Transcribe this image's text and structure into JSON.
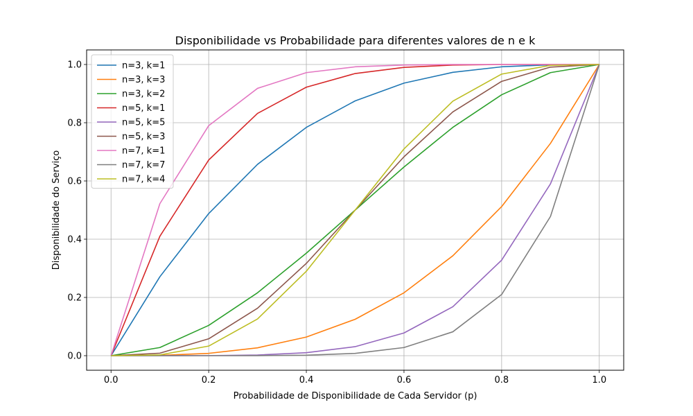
{
  "chart_data": {
    "type": "line",
    "title": "Disponibilidade vs Probabilidade para diferentes valores de n e k",
    "xlabel": "Probabilidade de Disponibilidade de Cada Servidor (p)",
    "ylabel": "Disponibilidade do Serviço",
    "xlim": [
      -0.05,
      1.05
    ],
    "ylim": [
      -0.05,
      1.05
    ],
    "xticks": [
      0.0,
      0.2,
      0.4,
      0.6,
      0.8,
      1.0
    ],
    "xtick_labels": [
      "0.0",
      "0.2",
      "0.4",
      "0.6",
      "0.8",
      "1.0"
    ],
    "yticks": [
      0.0,
      0.2,
      0.4,
      0.6,
      0.8,
      1.0
    ],
    "ytick_labels": [
      "0.0",
      "0.2",
      "0.4",
      "0.6",
      "0.8",
      "1.0"
    ],
    "grid": true,
    "legend_position": "top-left",
    "x": [
      0.0,
      0.1,
      0.2,
      0.3,
      0.4,
      0.5,
      0.6,
      0.7,
      0.8,
      0.9,
      1.0
    ],
    "series": [
      {
        "name": "n=3, k=1",
        "color": "#1f77b4",
        "values": [
          0.0,
          0.271,
          0.488,
          0.657,
          0.784,
          0.875,
          0.936,
          0.973,
          0.992,
          0.999,
          1.0
        ]
      },
      {
        "name": "n=3, k=3",
        "color": "#ff7f0e",
        "values": [
          0.0,
          0.001,
          0.008,
          0.027,
          0.064,
          0.125,
          0.216,
          0.343,
          0.512,
          0.729,
          1.0
        ]
      },
      {
        "name": "n=3, k=2",
        "color": "#2ca02c",
        "values": [
          0.0,
          0.028,
          0.104,
          0.216,
          0.352,
          0.5,
          0.648,
          0.784,
          0.896,
          0.972,
          1.0
        ]
      },
      {
        "name": "n=5, k=1",
        "color": "#d62728",
        "values": [
          0.0,
          0.41,
          0.672,
          0.832,
          0.922,
          0.969,
          0.99,
          0.998,
          1.0,
          1.0,
          1.0
        ]
      },
      {
        "name": "n=5, k=5",
        "color": "#9467bd",
        "values": [
          0.0,
          0.0,
          0.0003,
          0.0024,
          0.0102,
          0.031,
          0.078,
          0.168,
          0.328,
          0.59,
          1.0
        ]
      },
      {
        "name": "n=5, k=3",
        "color": "#8c564b",
        "values": [
          0.0,
          0.0086,
          0.058,
          0.163,
          0.317,
          0.5,
          0.683,
          0.837,
          0.942,
          0.991,
          1.0
        ]
      },
      {
        "name": "n=7, k=1",
        "color": "#e377c2",
        "values": [
          0.0,
          0.522,
          0.79,
          0.918,
          0.972,
          0.992,
          0.998,
          1.0,
          1.0,
          1.0,
          1.0
        ]
      },
      {
        "name": "n=7, k=7",
        "color": "#7f7f7f",
        "values": [
          0.0,
          0.0,
          0.0,
          0.0002,
          0.0016,
          0.0078,
          0.028,
          0.082,
          0.21,
          0.478,
          1.0
        ]
      },
      {
        "name": "n=7, k=4",
        "color": "#bcbd22",
        "values": [
          0.0,
          0.0027,
          0.033,
          0.126,
          0.29,
          0.5,
          0.71,
          0.874,
          0.967,
          0.997,
          1.0
        ]
      }
    ]
  }
}
